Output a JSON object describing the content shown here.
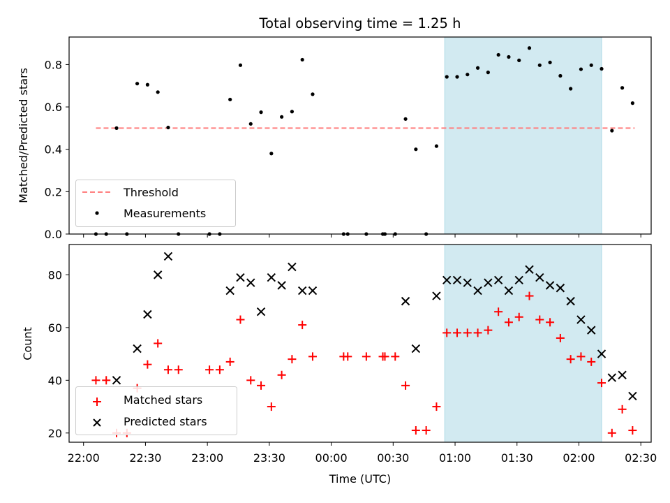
{
  "chart_data": [
    {
      "type": "scatter",
      "title": "Total observing time = 1.25 h",
      "ylabel": "Matched/Predicted stars",
      "xlabel": "",
      "x_unit": "time_utc",
      "x_range": [
        "21:53",
        "02:35"
      ],
      "ylim": [
        0,
        0.93
      ],
      "yticks": [
        "0.0",
        "0.2",
        "0.4",
        "0.6",
        "0.8"
      ],
      "shaded_span": {
        "x": [
          "00:55",
          "02:11"
        ],
        "color": "#add8e6"
      },
      "threshold": {
        "name": "Threshold",
        "y": 0.5,
        "x": [
          "22:06",
          "02:27"
        ],
        "color": "#ff7f7f",
        "style": "dashed"
      },
      "legend": {
        "placement": "lower-left",
        "entries": [
          "Threshold",
          "Measurements"
        ]
      },
      "series": [
        {
          "name": "Measurements",
          "marker": "dot",
          "color": "#000000",
          "points": [
            [
              "22:06",
              0.0
            ],
            [
              "22:11",
              0.0
            ],
            [
              "22:16",
              0.5
            ],
            [
              "22:21",
              0.0
            ],
            [
              "22:26",
              0.71
            ],
            [
              "22:31",
              0.705
            ],
            [
              "22:36",
              0.67
            ],
            [
              "22:41",
              0.503
            ],
            [
              "22:46",
              0.0
            ],
            [
              "23:01",
              0.0
            ],
            [
              "23:06",
              0.0
            ],
            [
              "23:11",
              0.635
            ],
            [
              "23:16",
              0.797
            ],
            [
              "23:21",
              0.52
            ],
            [
              "23:26",
              0.575
            ],
            [
              "23:31",
              0.38
            ],
            [
              "23:36",
              0.553
            ],
            [
              "23:41",
              0.578
            ],
            [
              "23:46",
              0.823
            ],
            [
              "23:51",
              0.66
            ],
            [
              "00:06",
              0.0
            ],
            [
              "00:08",
              0.0
            ],
            [
              "00:17",
              0.0
            ],
            [
              "00:25",
              0.0
            ],
            [
              "00:26",
              0.0
            ],
            [
              "00:31",
              0.0
            ],
            [
              "00:36",
              0.543
            ],
            [
              "00:41",
              0.4
            ],
            [
              "00:46",
              0.0
            ],
            [
              "00:51",
              0.415
            ],
            [
              "00:56",
              0.742
            ],
            [
              "01:01",
              0.742
            ],
            [
              "01:06",
              0.753
            ],
            [
              "01:11",
              0.784
            ],
            [
              "01:16",
              0.763
            ],
            [
              "01:21",
              0.846
            ],
            [
              "01:26",
              0.836
            ],
            [
              "01:31",
              0.82
            ],
            [
              "01:36",
              0.878
            ],
            [
              "01:41",
              0.797
            ],
            [
              "01:46",
              0.81
            ],
            [
              "01:51",
              0.747
            ],
            [
              "01:56",
              0.686
            ],
            [
              "02:01",
              0.778
            ],
            [
              "02:06",
              0.797
            ],
            [
              "02:11",
              0.78
            ],
            [
              "02:16",
              0.488
            ],
            [
              "02:21",
              0.69
            ],
            [
              "02:26",
              0.618
            ]
          ]
        }
      ]
    },
    {
      "type": "scatter",
      "title": "",
      "ylabel": "Count",
      "xlabel": "Time (UTC)",
      "x_unit": "time_utc",
      "x_range": [
        "21:53",
        "02:35"
      ],
      "ylim": [
        16.5,
        91.5
      ],
      "yticks": [
        "20",
        "40",
        "60",
        "80"
      ],
      "xticks": [
        "22:00",
        "22:30",
        "23:00",
        "23:30",
        "00:00",
        "00:30",
        "01:00",
        "01:30",
        "02:00",
        "02:30"
      ],
      "shaded_span": {
        "x": [
          "00:55",
          "02:11"
        ],
        "color": "#add8e6"
      },
      "legend": {
        "placement": "lower-left",
        "entries": [
          "Matched stars",
          "Predicted stars"
        ]
      },
      "series": [
        {
          "name": "Matched stars",
          "marker": "plus",
          "color": "#ff0000",
          "points": [
            [
              "22:06",
              40
            ],
            [
              "22:11",
              40
            ],
            [
              "22:16",
              20
            ],
            [
              "22:21",
              20
            ],
            [
              "22:26",
              37
            ],
            [
              "22:31",
              46
            ],
            [
              "22:36",
              54
            ],
            [
              "22:41",
              44
            ],
            [
              "22:46",
              44
            ],
            [
              "23:01",
              44
            ],
            [
              "23:06",
              44
            ],
            [
              "23:11",
              47
            ],
            [
              "23:16",
              63
            ],
            [
              "23:21",
              40
            ],
            [
              "23:26",
              38
            ],
            [
              "23:31",
              30
            ],
            [
              "23:36",
              42
            ],
            [
              "23:41",
              48
            ],
            [
              "23:46",
              61
            ],
            [
              "23:51",
              49
            ],
            [
              "00:06",
              49
            ],
            [
              "00:08",
              49
            ],
            [
              "00:17",
              49
            ],
            [
              "00:25",
              49
            ],
            [
              "00:26",
              49
            ],
            [
              "00:31",
              49
            ],
            [
              "00:36",
              38
            ],
            [
              "00:41",
              21
            ],
            [
              "00:46",
              21
            ],
            [
              "00:51",
              30
            ],
            [
              "00:56",
              58
            ],
            [
              "01:01",
              58
            ],
            [
              "01:06",
              58
            ],
            [
              "01:11",
              58
            ],
            [
              "01:16",
              59
            ],
            [
              "01:21",
              66
            ],
            [
              "01:26",
              62
            ],
            [
              "01:31",
              64
            ],
            [
              "01:36",
              72
            ],
            [
              "01:41",
              63
            ],
            [
              "01:46",
              62
            ],
            [
              "01:51",
              56
            ],
            [
              "01:56",
              48
            ],
            [
              "02:01",
              49
            ],
            [
              "02:06",
              47
            ],
            [
              "02:11",
              39
            ],
            [
              "02:16",
              20
            ],
            [
              "02:21",
              29
            ],
            [
              "02:26",
              21
            ]
          ]
        },
        {
          "name": "Predicted stars",
          "marker": "x",
          "color": "#000000",
          "points": [
            [
              "22:16",
              40
            ],
            [
              "22:26",
              52
            ],
            [
              "22:31",
              65
            ],
            [
              "22:36",
              80
            ],
            [
              "22:41",
              87
            ],
            [
              "23:11",
              74
            ],
            [
              "23:16",
              79
            ],
            [
              "23:21",
              77
            ],
            [
              "23:26",
              66
            ],
            [
              "23:31",
              79
            ],
            [
              "23:36",
              76
            ],
            [
              "23:41",
              83
            ],
            [
              "23:46",
              74
            ],
            [
              "23:51",
              74
            ],
            [
              "00:36",
              70
            ],
            [
              "00:41",
              52
            ],
            [
              "00:51",
              72
            ],
            [
              "00:56",
              78
            ],
            [
              "01:01",
              78
            ],
            [
              "01:06",
              77
            ],
            [
              "01:11",
              74
            ],
            [
              "01:16",
              77
            ],
            [
              "01:21",
              78
            ],
            [
              "01:26",
              74
            ],
            [
              "01:31",
              78
            ],
            [
              "01:36",
              82
            ],
            [
              "01:41",
              79
            ],
            [
              "01:46",
              76
            ],
            [
              "01:51",
              75
            ],
            [
              "01:56",
              70
            ],
            [
              "02:01",
              63
            ],
            [
              "02:06",
              59
            ],
            [
              "02:11",
              50
            ],
            [
              "02:16",
              41
            ],
            [
              "02:21",
              42
            ],
            [
              "02:26",
              34
            ]
          ]
        }
      ]
    }
  ]
}
